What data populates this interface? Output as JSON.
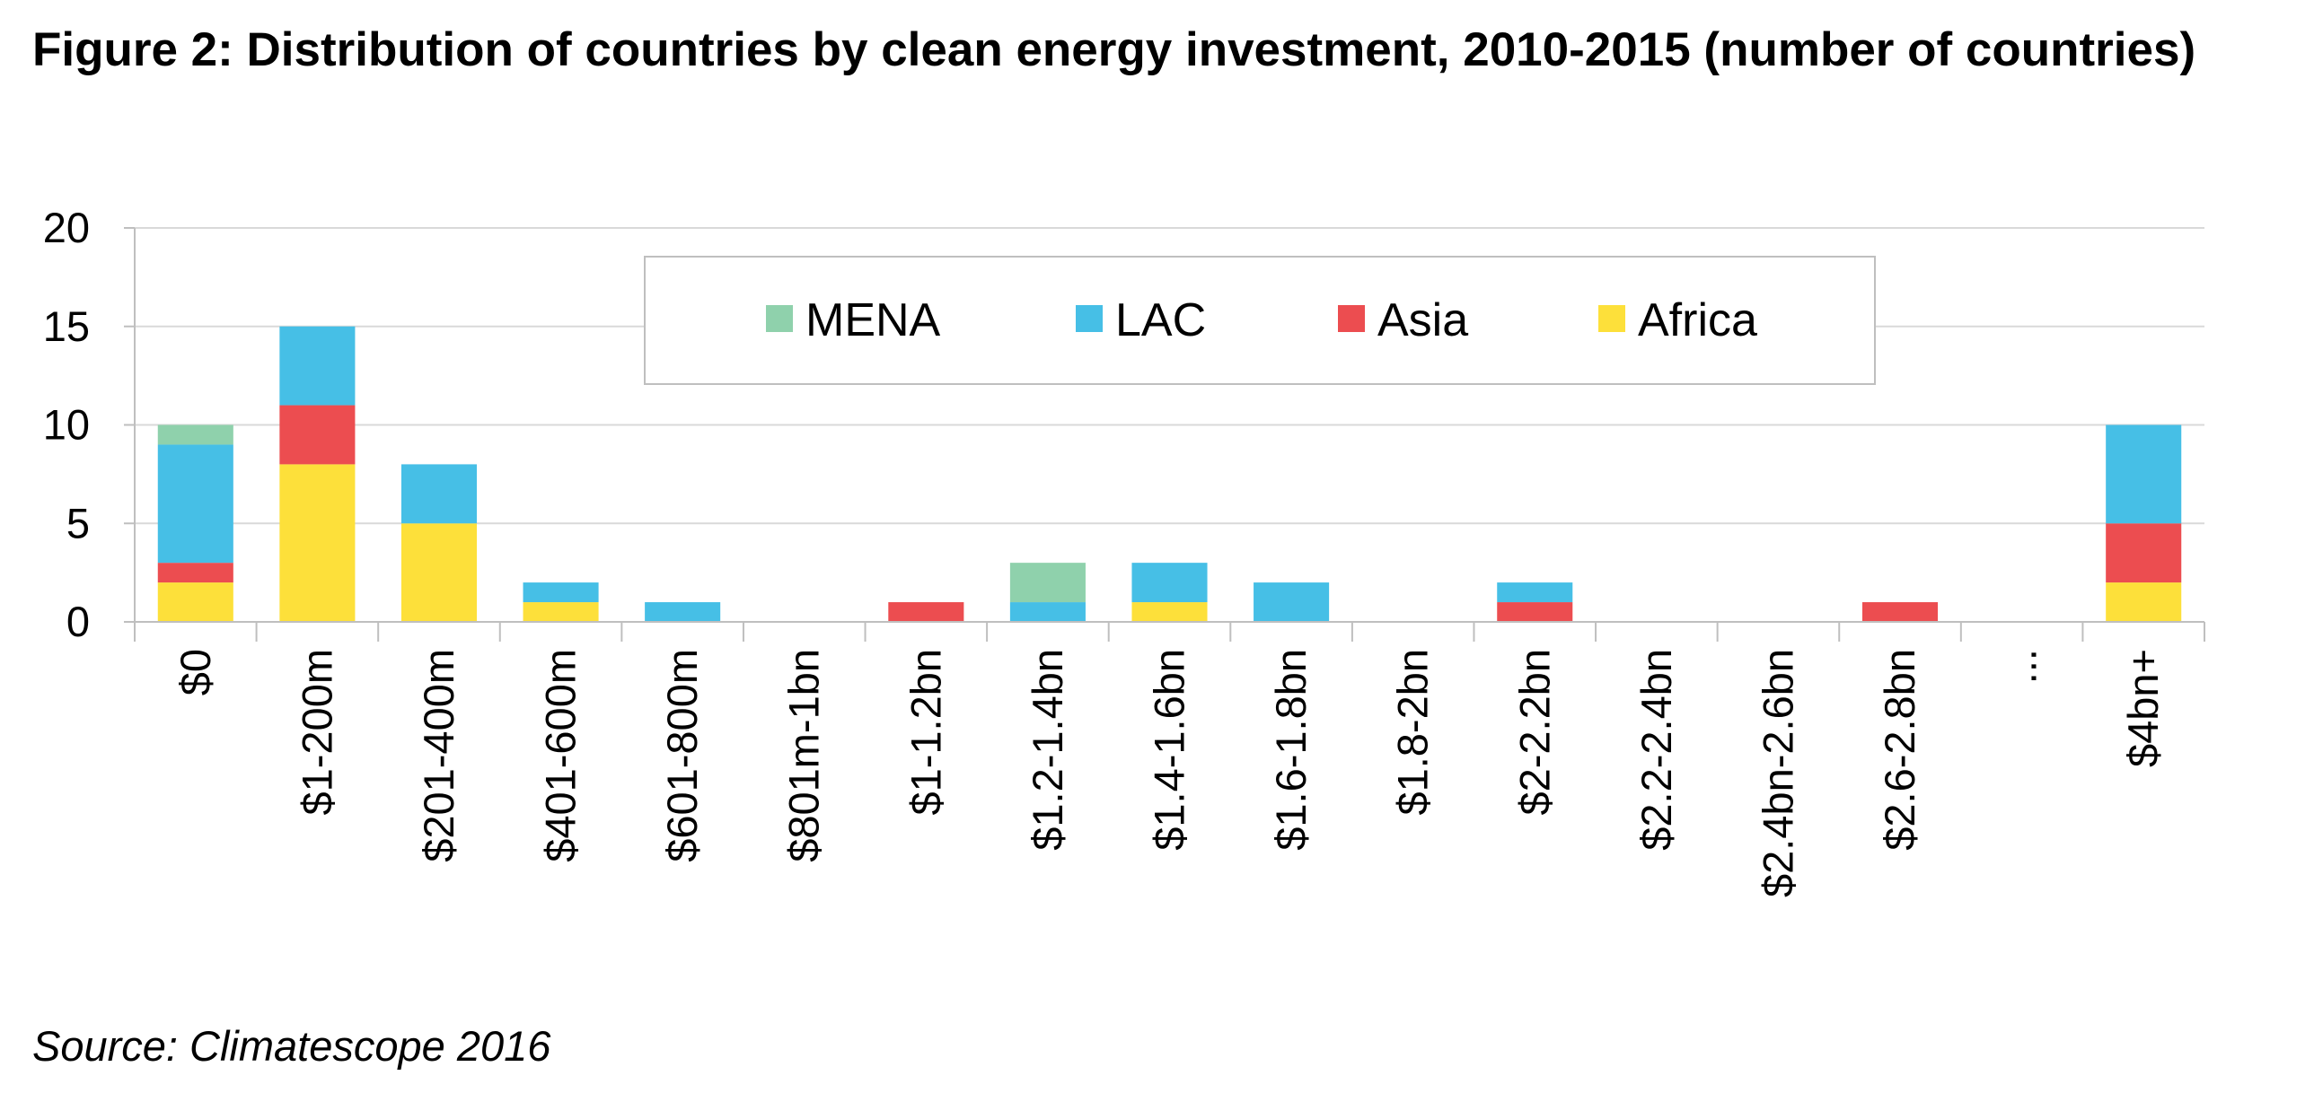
{
  "figure": {
    "title": "Figure 2: Distribution of countries by clean energy investment, 2010-2015 (number of countries)",
    "source": "Source: Climatescope 2016"
  },
  "chart_data": {
    "type": "bar",
    "stacked": true,
    "title": "Figure 2: Distribution of countries by clean energy investment, 2010-2015 (number of countries)",
    "xlabel": "",
    "ylabel": "",
    "ylim": [
      0,
      20
    ],
    "yticks": [
      0,
      5,
      10,
      15,
      20
    ],
    "grid": true,
    "legend_position": "top-center",
    "categories": [
      "$0",
      "$1-200m",
      "$201-400m",
      "$401-600m",
      "$601-800m",
      "$801m-1bn",
      "$1-1.2bn",
      "$1.2-1.4bn",
      "$1.4-1.6bn",
      "$1.6-1.8bn",
      "$1.8-2bn",
      "$2-2.2bn",
      "$2.2-2.4bn",
      "$2.4bn-2.6bn",
      "$2.6-2.8bn",
      "...",
      "$4bn+"
    ],
    "series": [
      {
        "name": "Africa",
        "color": "#fde03a",
        "values": [
          2,
          8,
          5,
          1,
          0,
          0,
          0,
          0,
          1,
          0,
          0,
          0,
          0,
          0,
          0,
          0,
          2
        ]
      },
      {
        "name": "Asia",
        "color": "#ec4d50",
        "values": [
          1,
          3,
          0,
          0,
          0,
          0,
          1,
          0,
          0,
          0,
          0,
          1,
          0,
          0,
          1,
          0,
          3
        ]
      },
      {
        "name": "LAC",
        "color": "#46bfe6",
        "values": [
          6,
          4,
          3,
          1,
          1,
          0,
          0,
          1,
          2,
          2,
          0,
          1,
          0,
          0,
          0,
          0,
          5
        ]
      },
      {
        "name": "MENA",
        "color": "#8fd1ac",
        "values": [
          1,
          0,
          0,
          0,
          0,
          0,
          0,
          2,
          0,
          0,
          0,
          0,
          0,
          0,
          0,
          0,
          0
        ]
      }
    ],
    "legend_order": [
      "MENA",
      "LAC",
      "Asia",
      "Africa"
    ],
    "colors": {
      "gridline": "#d9d9d9",
      "axis": "#bfbfbf",
      "legend_border": "#bfbfbf"
    }
  }
}
